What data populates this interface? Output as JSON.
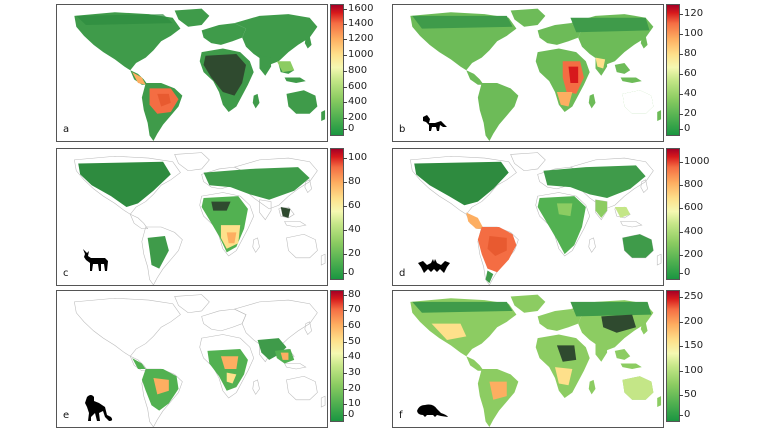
{
  "panels": [
    {
      "letter": "a",
      "icon": "none",
      "ticks": [
        "0",
        "200",
        "400",
        "600",
        "800",
        "1000",
        "1200",
        "1400",
        "1600"
      ],
      "max": 1650
    },
    {
      "letter": "b",
      "icon": "fox-silhouette-icon",
      "ticks": [
        "0",
        "20",
        "40",
        "60",
        "80",
        "100",
        "120"
      ],
      "max": 130
    },
    {
      "letter": "c",
      "icon": "goat-silhouette-icon",
      "ticks": [
        "0",
        "20",
        "40",
        "60",
        "80",
        "100"
      ],
      "max": 108
    },
    {
      "letter": "d",
      "icon": "bat-silhouette-icon",
      "ticks": [
        "0",
        "200",
        "400",
        "600",
        "800",
        "1000"
      ],
      "max": 1120
    },
    {
      "letter": "e",
      "icon": "monkey-silhouette-icon",
      "ticks": [
        "0",
        "10",
        "20",
        "30",
        "40",
        "50",
        "60",
        "70",
        "80"
      ],
      "max": 83
    },
    {
      "letter": "f",
      "icon": "rodent-silhouette-icon",
      "ticks": [
        "0",
        "50",
        "100",
        "150",
        "200",
        "250"
      ],
      "max": 265
    }
  ],
  "colors": {
    "low": "#1a9641",
    "mid": "#f5f8b2",
    "high": "#a50026",
    "dark_hotspot": "#2f4a2f"
  }
}
